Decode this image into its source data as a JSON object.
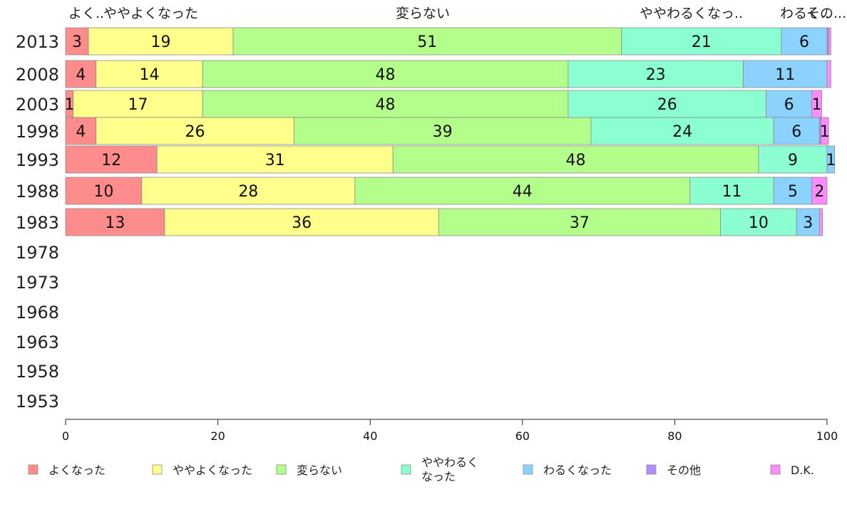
{
  "chart_data": {
    "type": "bar",
    "orientation": "horizontal-stacked",
    "categories": [
      "2013",
      "2008",
      "2003",
      "1998",
      "1993",
      "1988",
      "1983",
      "1978",
      "1973",
      "1968",
      "1963",
      "1958",
      "1953"
    ],
    "series": [
      {
        "name": "よくなった",
        "color": "#ff8c8c",
        "values": [
          3,
          4,
          1,
          4,
          12,
          10,
          13,
          null,
          null,
          null,
          null,
          null,
          null
        ],
        "labels": [
          "3",
          "4",
          "1",
          "4",
          "12",
          "10",
          "13",
          "",
          "",
          "",
          "",
          "",
          ""
        ]
      },
      {
        "name": "ややよくなった",
        "color": "#ffff8c",
        "values": [
          19,
          14,
          17,
          26,
          31,
          28,
          36,
          null,
          null,
          null,
          null,
          null,
          null
        ],
        "labels": [
          "19",
          "14",
          "17",
          "26",
          "31",
          "28",
          "36",
          "",
          "",
          "",
          "",
          "",
          ""
        ]
      },
      {
        "name": "変らない",
        "color": "#b4ff8c",
        "values": [
          51,
          48,
          48,
          39,
          48,
          44,
          37,
          null,
          null,
          null,
          null,
          null,
          null
        ],
        "labels": [
          "51",
          "48",
          "48",
          "39",
          "48",
          "44",
          "37",
          "",
          "",
          "",
          "",
          "",
          ""
        ]
      },
      {
        "name": "ややわるくなった",
        "color": "#8cffd2",
        "values": [
          21,
          23,
          26,
          24,
          9,
          11,
          10,
          null,
          null,
          null,
          null,
          null,
          null
        ],
        "labels": [
          "21",
          "23",
          "26",
          "24",
          "9",
          "11",
          "10",
          "",
          "",
          "",
          "",
          "",
          ""
        ]
      },
      {
        "name": "わるくなった",
        "color": "#8cd2ff",
        "values": [
          6,
          11,
          6,
          6,
          1,
          5,
          3,
          null,
          null,
          null,
          null,
          null,
          null
        ],
        "labels": [
          "6",
          "11",
          "6",
          "6",
          "1",
          "5",
          "3",
          "",
          "",
          "",
          "",
          "",
          ""
        ]
      },
      {
        "name": "その他",
        "color": "#b48cff",
        "values": [
          0.2,
          0,
          0,
          0.2,
          0,
          0,
          0,
          null,
          null,
          null,
          null,
          null,
          null
        ],
        "labels": [
          "",
          "",
          "",
          "",
          "",
          "",
          "",
          "",
          "",
          "",
          "",
          "",
          ""
        ]
      },
      {
        "name": "D.K.",
        "color": "#ff8cff",
        "values": [
          0.3,
          0.5,
          1.3,
          1,
          0,
          2,
          0.4,
          null,
          null,
          null,
          null,
          null,
          null
        ],
        "labels": [
          "",
          "",
          "1",
          "1",
          "",
          "2",
          "",
          "",
          "",
          "",
          "",
          "",
          ""
        ]
      }
    ],
    "top_labels": [
      "よく..",
      "ややよくなった",
      "変らない",
      "ややわるくなっ..",
      "わるく..",
      "その..."
    ],
    "xlim": [
      0,
      100
    ],
    "xticks": [
      "0",
      "20",
      "40",
      "60",
      "80",
      "100"
    ],
    "legend_position": "bottom",
    "legend_labels": [
      "よくなった",
      "ややよくなった",
      "変らない",
      "ややわるく\nなった",
      "わるくなった",
      "その他",
      "D.K."
    ],
    "grid": false
  }
}
